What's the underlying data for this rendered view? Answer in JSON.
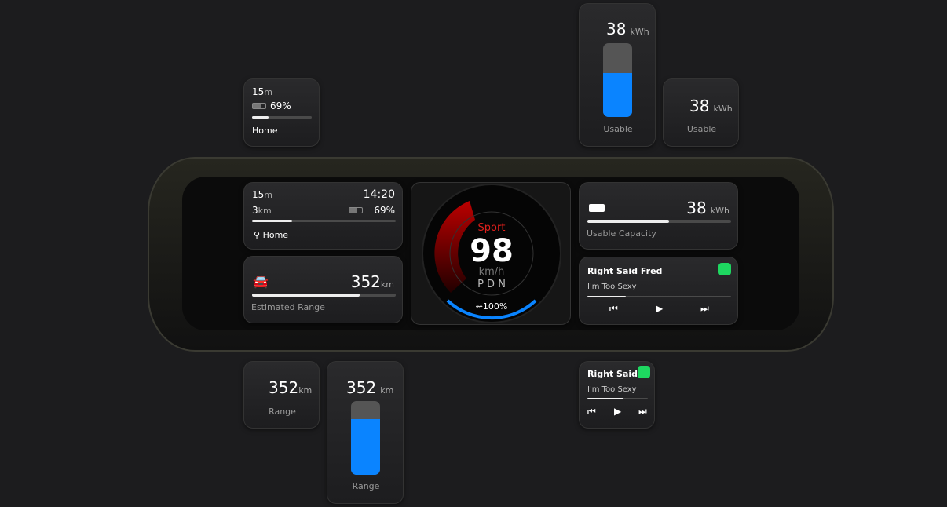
{
  "trip": {
    "duration": "15",
    "duration_unit": "m",
    "distance": "3",
    "distance_unit": "km",
    "time": "14:20",
    "battery": "69%",
    "destination": "Home",
    "progress": 0.28
  },
  "range": {
    "value": "352",
    "unit": "km",
    "label": "Estimated Range",
    "short_label": "Range",
    "fraction": 0.75
  },
  "capacity": {
    "value": "38",
    "unit": "kWh",
    "label": "Usable Capacity",
    "short_label": "Usable",
    "fraction": 0.57
  },
  "speedo": {
    "mode": "Sport",
    "speed": "98",
    "unit": "km/h",
    "gears": "P D N",
    "regen": "100%"
  },
  "music": {
    "artist": "Right Said Fred",
    "artist_short": "Right Said",
    "track": "I'm Too Sexy",
    "progress": 0.27
  },
  "colors": {
    "accent": "#0a84ff",
    "sport": "#e0201c",
    "spotify": "#1ed760"
  }
}
